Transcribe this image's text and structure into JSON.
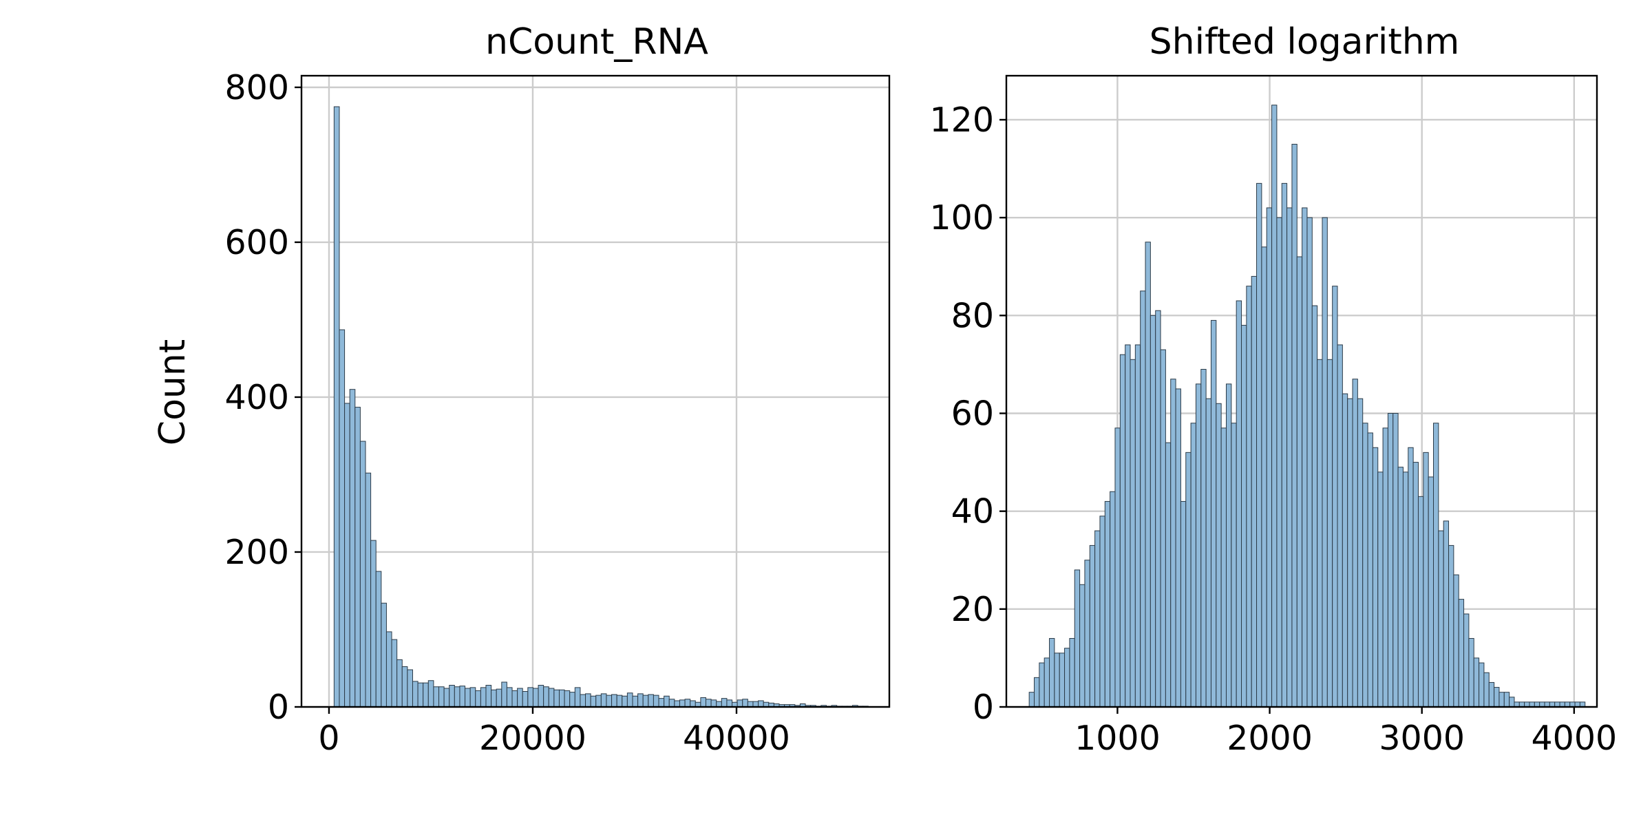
{
  "figure": {
    "ylabel": "Count"
  },
  "colors": {
    "bar_fill": "#8fb9d9",
    "bar_edge": "#2b3a47",
    "grid": "#cccccc",
    "axes": "#000000"
  },
  "chart_data": [
    {
      "type": "bar",
      "title": "nCount_RNA",
      "xlabel": "",
      "ylabel": "Count",
      "xlim": [
        -2700,
        55000
      ],
      "ylim": [
        0,
        815
      ],
      "xticks": [
        0,
        20000,
        40000
      ],
      "yticks": [
        0,
        200,
        400,
        600,
        800
      ],
      "grid": true,
      "bin_start": 500,
      "bin_width": 514,
      "values": [
        775,
        487,
        392,
        410,
        387,
        343,
        302,
        215,
        175,
        134,
        97,
        87,
        61,
        52,
        48,
        33,
        31,
        31,
        34,
        26,
        26,
        24,
        28,
        26,
        27,
        24,
        25,
        21,
        25,
        28,
        22,
        23,
        32,
        25,
        21,
        24,
        20,
        25,
        24,
        28,
        26,
        24,
        22,
        22,
        21,
        19,
        25,
        16,
        17,
        14,
        15,
        17,
        15,
        16,
        15,
        14,
        18,
        14,
        17,
        15,
        16,
        15,
        11,
        14,
        10,
        8,
        9,
        10,
        8,
        6,
        12,
        10,
        9,
        7,
        11,
        9,
        6,
        9,
        10,
        7,
        7,
        8,
        6,
        5,
        4,
        3,
        3,
        3,
        2,
        4,
        2,
        2,
        1,
        2,
        1,
        2,
        1,
        1,
        1,
        2,
        1,
        1
      ]
    },
    {
      "type": "bar",
      "title": "Shifted logarithm",
      "xlabel": "",
      "ylabel": "",
      "xlim": [
        270,
        4150
      ],
      "ylim": [
        0,
        129
      ],
      "xticks": [
        1000,
        2000,
        3000,
        4000
      ],
      "yticks": [
        0,
        20,
        40,
        60,
        80,
        100,
        120
      ],
      "grid": true,
      "bin_start": 420,
      "bin_width": 33.2,
      "values": [
        3,
        6,
        9,
        10,
        14,
        11,
        11,
        12,
        14,
        28,
        25,
        30,
        33,
        36,
        39,
        42,
        44,
        57,
        72,
        74,
        71,
        74,
        85,
        95,
        80,
        81,
        73,
        54,
        67,
        65,
        42,
        52,
        58,
        66,
        69,
        63,
        79,
        62,
        57,
        66,
        58,
        83,
        78,
        86,
        88,
        107,
        94,
        102,
        123,
        100,
        107,
        102,
        115,
        92,
        102,
        100,
        82,
        71,
        100,
        71,
        86,
        74,
        64,
        63,
        67,
        63,
        58,
        56,
        53,
        48,
        57,
        60,
        60,
        49,
        48,
        53,
        50,
        43,
        52,
        47,
        58,
        36,
        38,
        33,
        27,
        22,
        19,
        14,
        10,
        9,
        7,
        5,
        4,
        3,
        3,
        2,
        1,
        1,
        1,
        1,
        1,
        1,
        1,
        1,
        1,
        1,
        1,
        1,
        1,
        1
      ]
    }
  ]
}
